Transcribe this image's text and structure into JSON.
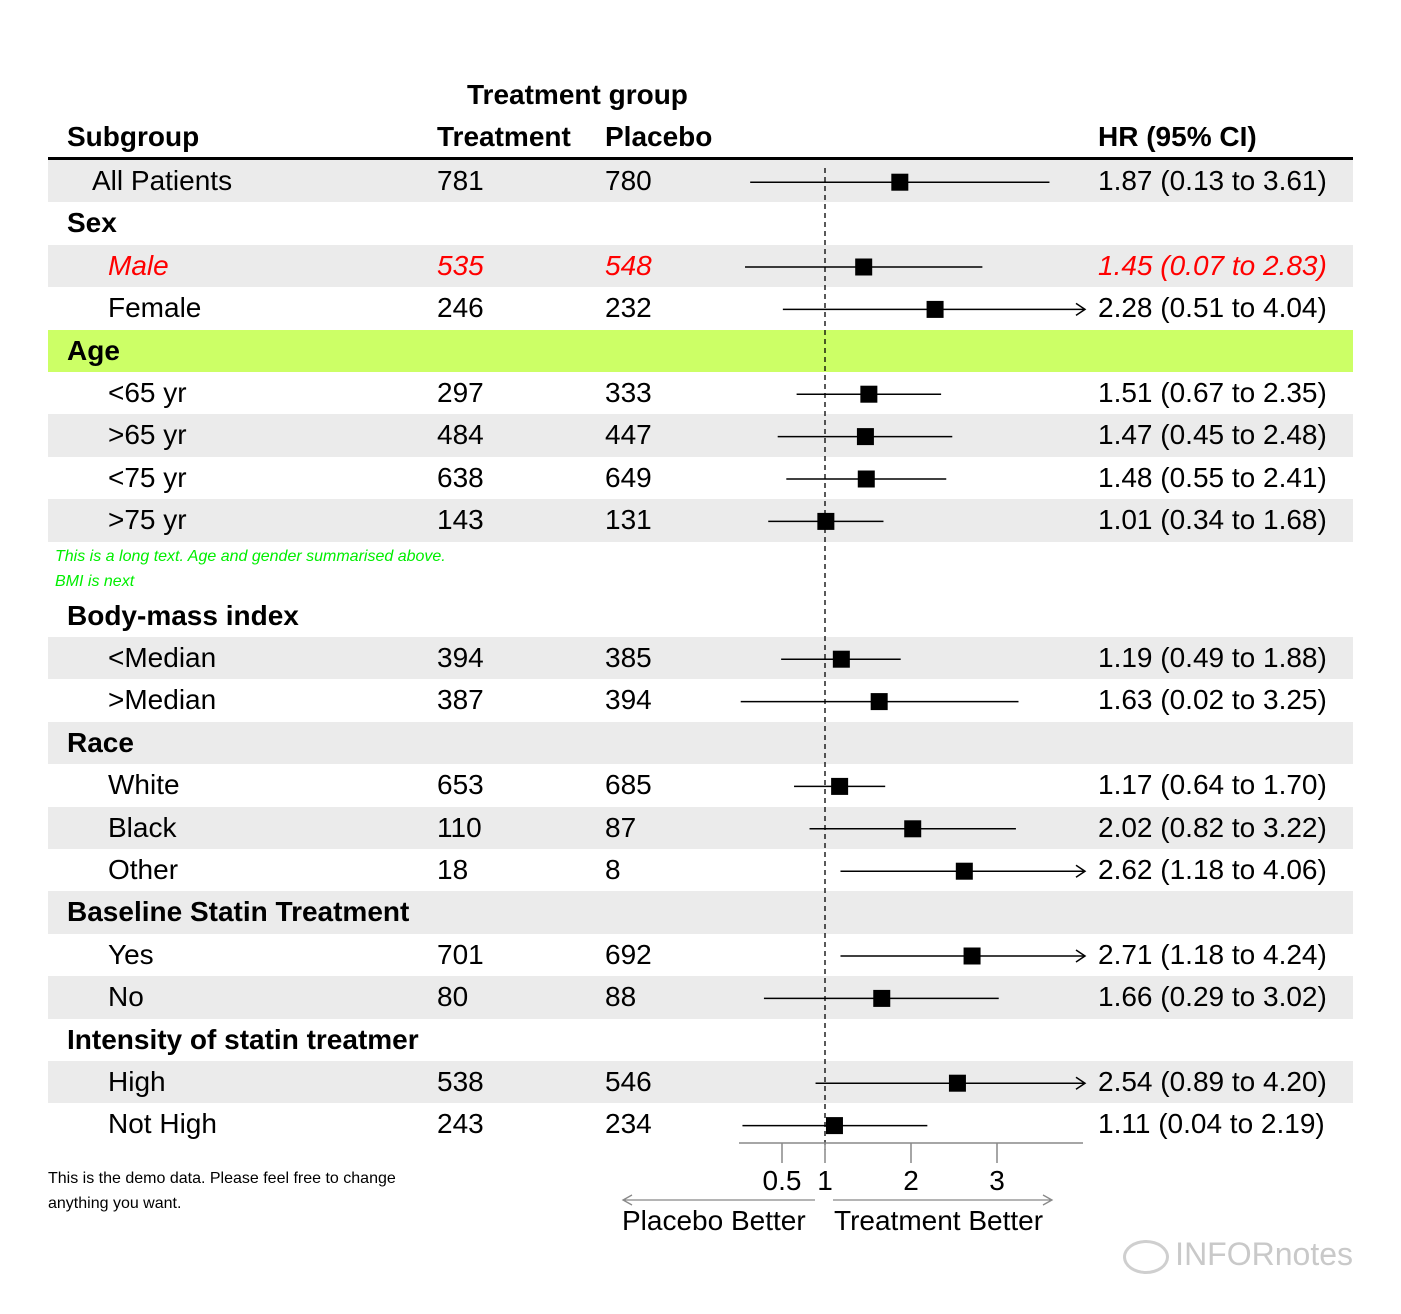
{
  "header": {
    "spanner": "Treatment group",
    "col_subgroup": "Subgroup",
    "col_treatment": "Treatment",
    "col_placebo": "Placebo",
    "col_hr": "HR (95% CI)"
  },
  "colors": {
    "band_gray": "#ebebeb",
    "band_green": "#ccff66",
    "highlight_red": "#ff0000",
    "note_green": "#00ee00",
    "rule": "#000000"
  },
  "note_text": [
    "This is a long text. Age and gender summarised above.",
    "BMI is next"
  ],
  "footnote": [
    "This is the demo data. Please feel free to change",
    "anything you want."
  ],
  "axis": {
    "ticks": [
      "0.5",
      "1",
      "2",
      "3"
    ],
    "left_label": "Placebo Better",
    "right_label": "Treatment Better"
  },
  "watermark": "INFORnotes",
  "chart_data": {
    "type": "forest",
    "x_reference": 1,
    "xlim": [
      0,
      4
    ],
    "x_arrow_clip": 4.0,
    "rows": [
      {
        "label": "All Patients",
        "kind": "item",
        "band": "gray",
        "treatment": "781",
        "placebo": "780",
        "est": 1.87,
        "lo": 0.13,
        "hi": 3.61,
        "hr_text": "1.87 (0.13 to 3.61)"
      },
      {
        "label": "Sex",
        "kind": "group",
        "band": "none"
      },
      {
        "label": "Male",
        "kind": "item",
        "band": "gray",
        "highlight": true,
        "treatment": "535",
        "placebo": "548",
        "est": 1.45,
        "lo": 0.07,
        "hi": 2.83,
        "hr_text": "1.45 (0.07 to 2.83)"
      },
      {
        "label": "Female",
        "kind": "item",
        "band": "none",
        "treatment": "246",
        "placebo": "232",
        "est": 2.28,
        "lo": 0.51,
        "hi": 4.04,
        "hr_text": "2.28 (0.51 to 4.04)"
      },
      {
        "label": "Age",
        "kind": "group",
        "band": "green"
      },
      {
        "label": "<65 yr",
        "kind": "item",
        "band": "none",
        "treatment": "297",
        "placebo": "333",
        "est": 1.51,
        "lo": 0.67,
        "hi": 2.35,
        "hr_text": "1.51 (0.67 to 2.35)"
      },
      {
        "label": ">65 yr",
        "kind": "item",
        "band": "gray",
        "treatment": "484",
        "placebo": "447",
        "est": 1.47,
        "lo": 0.45,
        "hi": 2.48,
        "hr_text": "1.47 (0.45 to 2.48)"
      },
      {
        "label": "<75 yr",
        "kind": "item",
        "band": "none",
        "treatment": "638",
        "placebo": "649",
        "est": 1.48,
        "lo": 0.55,
        "hi": 2.41,
        "hr_text": "1.48 (0.55 to 2.41)"
      },
      {
        "label": ">75 yr",
        "kind": "item",
        "band": "gray",
        "treatment": "143",
        "placebo": "131",
        "est": 1.01,
        "lo": 0.34,
        "hi": 1.68,
        "hr_text": "1.01 (0.34 to 1.68)"
      },
      {
        "label": "",
        "kind": "note",
        "band": "none"
      },
      {
        "label": "Body-mass index",
        "kind": "group",
        "band": "none"
      },
      {
        "label": "<Median",
        "kind": "item",
        "band": "gray",
        "treatment": "394",
        "placebo": "385",
        "est": 1.19,
        "lo": 0.49,
        "hi": 1.88,
        "hr_text": "1.19 (0.49 to 1.88)"
      },
      {
        "label": ">Median",
        "kind": "item",
        "band": "none",
        "treatment": "387",
        "placebo": "394",
        "est": 1.63,
        "lo": 0.02,
        "hi": 3.25,
        "hr_text": "1.63 (0.02 to 3.25)"
      },
      {
        "label": "Race",
        "kind": "group",
        "band": "gray"
      },
      {
        "label": "White",
        "kind": "item",
        "band": "none",
        "treatment": "653",
        "placebo": "685",
        "est": 1.17,
        "lo": 0.64,
        "hi": 1.7,
        "hr_text": "1.17 (0.64 to 1.70)"
      },
      {
        "label": "Black",
        "kind": "item",
        "band": "gray",
        "treatment": "110",
        "placebo": "87",
        "est": 2.02,
        "lo": 0.82,
        "hi": 3.22,
        "hr_text": "2.02 (0.82 to 3.22)"
      },
      {
        "label": "Other",
        "kind": "item",
        "band": "none",
        "treatment": "18",
        "placebo": "8",
        "est": 2.62,
        "lo": 1.18,
        "hi": 4.06,
        "hr_text": "2.62 (1.18 to 4.06)"
      },
      {
        "label": "Baseline Statin Treatment",
        "kind": "group",
        "band": "gray"
      },
      {
        "label": "Yes",
        "kind": "item",
        "band": "none",
        "treatment": "701",
        "placebo": "692",
        "est": 2.71,
        "lo": 1.18,
        "hi": 4.24,
        "hr_text": "2.71 (1.18 to 4.24)"
      },
      {
        "label": "No",
        "kind": "item",
        "band": "gray",
        "treatment": "80",
        "placebo": "88",
        "est": 1.66,
        "lo": 0.29,
        "hi": 3.02,
        "hr_text": "1.66 (0.29 to 3.02)"
      },
      {
        "label": "Intensity of statin treatmer",
        "kind": "group",
        "band": "none"
      },
      {
        "label": "High",
        "kind": "item",
        "band": "gray",
        "treatment": "538",
        "placebo": "546",
        "est": 2.54,
        "lo": 0.89,
        "hi": 4.2,
        "hr_text": "2.54 (0.89 to 4.20)"
      },
      {
        "label": "Not High",
        "kind": "item",
        "band": "none",
        "treatment": "243",
        "placebo": "234",
        "est": 1.11,
        "lo": 0.04,
        "hi": 2.19,
        "hr_text": "1.11 (0.04 to 2.19)"
      }
    ]
  }
}
